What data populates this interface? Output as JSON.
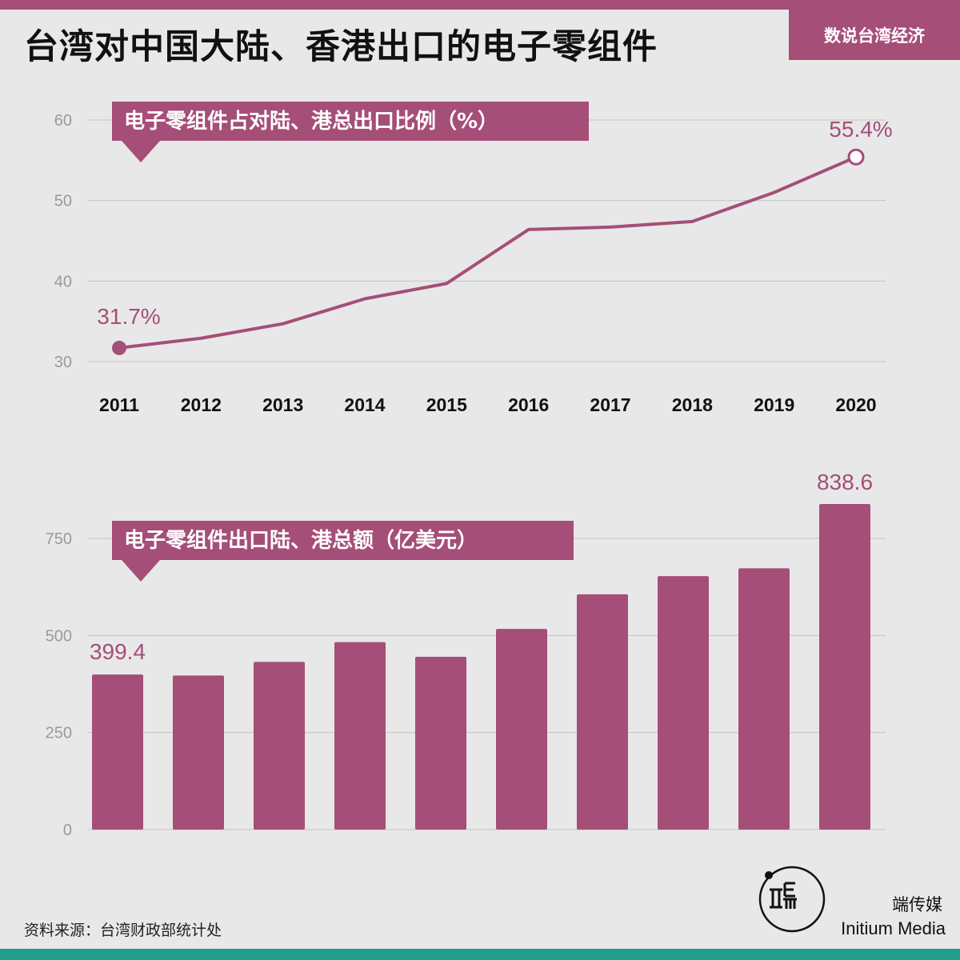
{
  "header": {
    "title": "台湾对中国大陆、香港出口的电子零组件",
    "brand_tag": "数说台湾经济"
  },
  "colors": {
    "accent": "#a54e78",
    "footer_bar": "#1f9e8a",
    "background": "#e8e8e8"
  },
  "chart_data": [
    {
      "type": "line",
      "title": "电子零组件占对陆、港总出口比例（%）",
      "categories": [
        "2011",
        "2012",
        "2013",
        "2014",
        "2015",
        "2016",
        "2017",
        "2018",
        "2019",
        "2020"
      ],
      "values": [
        31.7,
        32.9,
        34.7,
        37.8,
        39.7,
        46.4,
        46.7,
        47.4,
        51.0,
        55.4
      ],
      "yticks": [
        30,
        40,
        50,
        60
      ],
      "ylim": [
        29,
        61
      ],
      "grid": true,
      "annotations": [
        {
          "index": 0,
          "label": "31.7%"
        },
        {
          "index": 9,
          "label": "55.4%"
        }
      ]
    },
    {
      "type": "bar",
      "title": "电子零组件出口陆、港总额（亿美元）",
      "categories": [
        "2011",
        "2012",
        "2013",
        "2014",
        "2015",
        "2016",
        "2017",
        "2018",
        "2019",
        "2020"
      ],
      "values": [
        399.4,
        397,
        432,
        483,
        445,
        517,
        606,
        653,
        673,
        838.6
      ],
      "yticks": [
        0,
        250,
        500,
        750
      ],
      "ylim": [
        0,
        870
      ],
      "grid": true,
      "annotations": [
        {
          "index": 0,
          "label": "399.4"
        },
        {
          "index": 9,
          "label": "838.6"
        }
      ]
    }
  ],
  "footer": {
    "source": "资料来源：台湾财政部统计处",
    "media_cn": "端传媒",
    "media_en": "Initium Media"
  }
}
